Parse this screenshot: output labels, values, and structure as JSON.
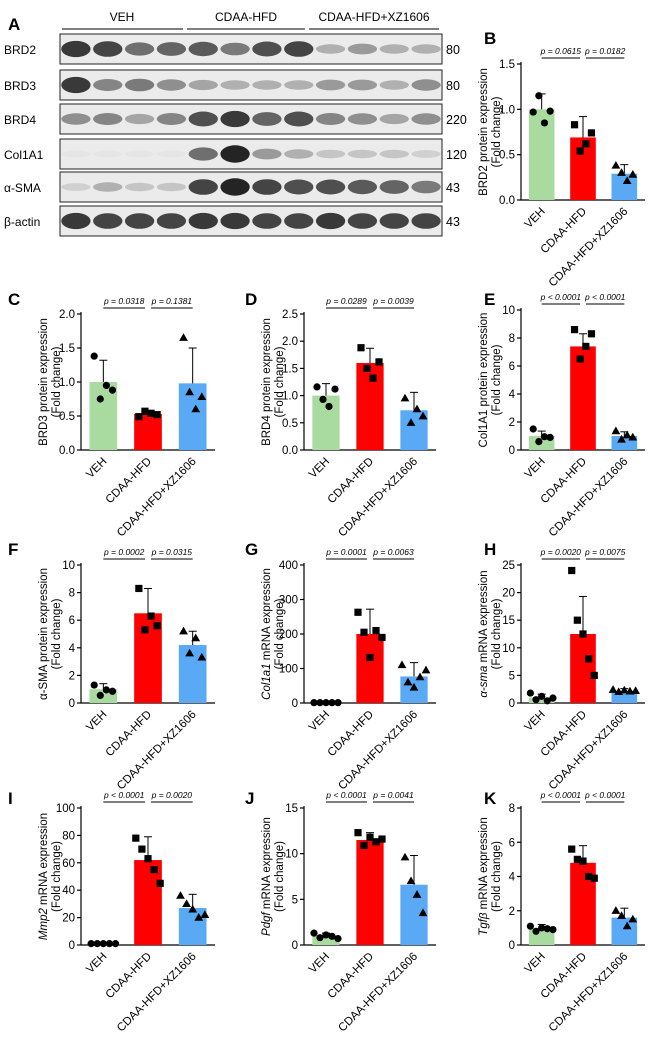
{
  "figure": {
    "western_blot": {
      "panel_label": "A",
      "groups": [
        "VEH",
        "CDAA-HFD",
        "CDAA-HFD+XZ1606"
      ],
      "lanes_per_group": [
        4,
        4,
        4
      ],
      "rows": [
        {
          "protein": "BRD2",
          "kda": "80",
          "intensity": [
            0.85,
            0.8,
            0.6,
            0.65,
            0.7,
            0.55,
            0.75,
            0.8,
            0.3,
            0.4,
            0.3,
            0.3
          ]
        },
        {
          "protein": "BRD3",
          "kda": "80",
          "intensity": [
            0.85,
            0.5,
            0.55,
            0.45,
            0.35,
            0.3,
            0.3,
            0.3,
            0.4,
            0.4,
            0.3,
            0.45
          ]
        },
        {
          "protein": "BRD4",
          "kda": "220",
          "intensity": [
            0.45,
            0.5,
            0.35,
            0.5,
            0.75,
            0.85,
            0.65,
            0.75,
            0.5,
            0.45,
            0.35,
            0.45
          ]
        },
        {
          "protein": "Col1A1",
          "kda": "120",
          "intensity": [
            0.05,
            0.05,
            0.05,
            0.05,
            0.6,
            0.95,
            0.4,
            0.3,
            0.2,
            0.2,
            0.2,
            0.15
          ]
        },
        {
          "protein": "α-SMA",
          "kda": "43",
          "intensity": [
            0.15,
            0.3,
            0.2,
            0.2,
            0.8,
            0.95,
            0.8,
            0.75,
            0.75,
            0.7,
            0.65,
            0.55
          ]
        },
        {
          "protein": "β-actin",
          "kda": "43",
          "intensity": [
            0.85,
            0.8,
            0.8,
            0.8,
            0.85,
            0.85,
            0.8,
            0.8,
            0.85,
            0.8,
            0.8,
            0.8
          ]
        }
      ]
    }
  },
  "chart_data": [
    {
      "panel": "B",
      "type": "bar",
      "categories": [
        "VEH",
        "CDAA-HFD",
        "CDAA-HFD+XZ1606"
      ],
      "values": [
        1.0,
        0.69,
        0.29
      ],
      "errors": [
        0.17,
        0.23,
        0.1
      ],
      "points": [
        [
          0.97,
          1.15,
          0.85,
          0.98
        ],
        [
          0.83,
          0.54,
          0.62,
          0.74
        ],
        [
          0.38,
          0.3,
          0.21,
          0.28
        ]
      ],
      "markers": [
        "circle",
        "square",
        "triangle"
      ],
      "ylabel": "BRD2 protein expression",
      "ylabel2": "(Fold change)",
      "ylim": [
        0,
        1.5
      ],
      "yticks": [
        0.0,
        0.5,
        1.0,
        1.5
      ],
      "yticklabels": [
        "0.0",
        "0.5",
        "1.0",
        "1.5"
      ],
      "pvalues": [
        "p = 0.0615",
        "p = 0.0182"
      ]
    },
    {
      "panel": "C",
      "type": "bar",
      "categories": [
        "VEH",
        "CDAA-HFD",
        "CDAA-HFD+XZ1606"
      ],
      "values": [
        1.0,
        0.53,
        0.98
      ],
      "errors": [
        0.32,
        0.05,
        0.52
      ],
      "points": [
        [
          1.38,
          0.75,
          0.95,
          0.88
        ],
        [
          0.49,
          0.57,
          0.54,
          0.52
        ],
        [
          1.65,
          0.85,
          0.6,
          0.78
        ]
      ],
      "markers": [
        "circle",
        "square",
        "triangle"
      ],
      "ylabel": "BRD3 protein expression",
      "ylabel2": "(Fold change)",
      "ylim": [
        0,
        2.0
      ],
      "yticks": [
        0.0,
        0.5,
        1.0,
        1.5,
        2.0
      ],
      "yticklabels": [
        "0.0",
        "0.5",
        "1.0",
        "1.5",
        "2.0"
      ],
      "pvalues": [
        "p = 0.0318",
        "p = 0.1381"
      ]
    },
    {
      "panel": "D",
      "type": "bar",
      "categories": [
        "VEH",
        "CDAA-HFD",
        "CDAA-HFD+XZ1606"
      ],
      "values": [
        1.0,
        1.6,
        0.73
      ],
      "errors": [
        0.22,
        0.27,
        0.33
      ],
      "points": [
        [
          1.16,
          0.93,
          0.8,
          1.12
        ],
        [
          1.88,
          1.5,
          1.32,
          1.62
        ],
        [
          0.95,
          0.5,
          0.75,
          0.62
        ]
      ],
      "markers": [
        "circle",
        "square",
        "triangle"
      ],
      "ylabel": "BRD4 protein expression",
      "ylabel2": "(Fold change)",
      "ylim": [
        0,
        2.5
      ],
      "yticks": [
        0.0,
        0.5,
        1.0,
        1.5,
        2.0,
        2.5
      ],
      "yticklabels": [
        "0.0",
        "0.5",
        "1.0",
        "1.5",
        "2.0",
        "2.5"
      ],
      "pvalues": [
        "p = 0.0289",
        "p = 0.0039"
      ]
    },
    {
      "panel": "E",
      "type": "bar",
      "categories": [
        "VEH",
        "CDAA-HFD",
        "CDAA-HFD+XZ1606"
      ],
      "values": [
        1.0,
        7.4,
        1.0
      ],
      "errors": [
        0.35,
        0.9,
        0.3
      ],
      "points": [
        [
          1.5,
          0.6,
          0.95,
          0.9
        ],
        [
          8.6,
          6.5,
          7.4,
          8.3
        ],
        [
          1.35,
          0.75,
          1.05,
          0.9
        ]
      ],
      "markers": [
        "circle",
        "square",
        "triangle"
      ],
      "ylabel": "Col1A1 protein expression",
      "ylabel2": "(Fold change)",
      "ylim": [
        0,
        10
      ],
      "yticks": [
        0,
        2,
        4,
        6,
        8,
        10
      ],
      "yticklabels": [
        "0",
        "2",
        "4",
        "6",
        "8",
        "10"
      ],
      "pvalues": [
        "p < 0.0001",
        "p < 0.0001"
      ]
    },
    {
      "panel": "F",
      "type": "bar",
      "categories": [
        "VEH",
        "CDAA-HFD",
        "CDAA-HFD+XZ1606"
      ],
      "values": [
        1.0,
        6.5,
        4.2
      ],
      "errors": [
        0.4,
        1.8,
        1.0
      ],
      "points": [
        [
          1.3,
          0.55,
          0.95,
          0.85
        ],
        [
          8.3,
          5.3,
          6.3,
          5.6
        ],
        [
          5.2,
          3.6,
          4.7,
          3.3
        ]
      ],
      "markers": [
        "circle",
        "square",
        "triangle"
      ],
      "ylabel": "α-SMA protein expression",
      "ylabel2": "(Fold change)",
      "ylim": [
        0,
        10
      ],
      "yticks": [
        0,
        2,
        4,
        6,
        8,
        10
      ],
      "yticklabels": [
        "0",
        "2",
        "4",
        "6",
        "8",
        "10"
      ],
      "pvalues": [
        "p = 0.0002",
        "p = 0.0315"
      ]
    },
    {
      "panel": "G",
      "type": "bar",
      "categories": [
        "VEH",
        "CDAA-HFD",
        "CDAA-HFD+XZ1606"
      ],
      "values": [
        1.0,
        200,
        77
      ],
      "errors": [
        0.3,
        72,
        40
      ],
      "points": [
        [
          1,
          1,
          1,
          1,
          1
        ],
        [
          263,
          205,
          132,
          210,
          190
        ],
        [
          110,
          60,
          45,
          75,
          95
        ]
      ],
      "markers": [
        "circle",
        "square",
        "triangle"
      ],
      "ylabel": "Col1a1 mRNA expression",
      "ylabel_italic": "Col1a1",
      "ylabel_rest": " mRNA expression",
      "ylabel2": "(Fold change)",
      "ylim": [
        0,
        400
      ],
      "yticks": [
        0,
        100,
        200,
        300,
        400
      ],
      "yticklabels": [
        "0",
        "100",
        "200",
        "300",
        "400"
      ],
      "pvalues": [
        "p = 0.0001",
        "p = 0.0063"
      ]
    },
    {
      "panel": "H",
      "type": "bar",
      "categories": [
        "VEH",
        "CDAA-HFD",
        "CDAA-HFD+XZ1606"
      ],
      "values": [
        1.0,
        12.5,
        2.2
      ],
      "errors": [
        0.6,
        6.8,
        0.4
      ],
      "points": [
        [
          1.8,
          0.6,
          1.2,
          0.4,
          0.9
        ],
        [
          24,
          15,
          12.5,
          8,
          5
        ],
        [
          2.4,
          2.0,
          2.3,
          2.1,
          2.2
        ]
      ],
      "markers": [
        "circle",
        "square",
        "triangle"
      ],
      "ylabel": "α-sma mRNA expression",
      "ylabel_italic": "α-sma",
      "ylabel_rest": " mRNA expression",
      "ylabel2": "(Fold change)",
      "ylim": [
        0,
        25
      ],
      "yticks": [
        0,
        5,
        10,
        15,
        20,
        25
      ],
      "yticklabels": [
        "0",
        "5",
        "10",
        "15",
        "20",
        "25"
      ],
      "pvalues": [
        "p = 0.0020",
        "p = 0.0075"
      ]
    },
    {
      "panel": "I",
      "type": "bar",
      "categories": [
        "VEH",
        "CDAA-HFD",
        "CDAA-HFD+XZ1606"
      ],
      "values": [
        1.0,
        62,
        27
      ],
      "errors": [
        0.2,
        17,
        10
      ],
      "points": [
        [
          1,
          1,
          1,
          1,
          1
        ],
        [
          78,
          70,
          63,
          55,
          45
        ],
        [
          36,
          30,
          26,
          20,
          22
        ]
      ],
      "markers": [
        "circle",
        "square",
        "triangle"
      ],
      "ylabel": "Mmp2 mRNA expression",
      "ylabel_italic": "Mmp2",
      "ylabel_rest": " mRNA expression",
      "ylabel2": "(Fold change)",
      "ylim": [
        0,
        100
      ],
      "yticks": [
        0,
        20,
        40,
        60,
        80,
        100
      ],
      "yticklabels": [
        "0",
        "20",
        "40",
        "60",
        "80",
        "100"
      ],
      "pvalues": [
        "p < 0.0001",
        "p = 0.0020"
      ]
    },
    {
      "panel": "J",
      "type": "bar",
      "categories": [
        "VEH",
        "CDAA-HFD",
        "CDAA-HFD+XZ1606"
      ],
      "values": [
        1.0,
        11.5,
        6.6
      ],
      "errors": [
        0.3,
        0.8,
        3.2
      ],
      "points": [
        [
          1.3,
          0.8,
          1.1,
          0.95,
          0.7
        ],
        [
          12.3,
          10.9,
          11.8,
          11.3,
          11.6
        ],
        [
          9.6,
          7.0,
          5.5,
          3.5
        ]
      ],
      "markers": [
        "circle",
        "square",
        "triangle"
      ],
      "ylabel": "Pdgf mRNA expression",
      "ylabel_italic": "Pdgf",
      "ylabel_rest": " mRNA expression",
      "ylabel2": "(Fold change)",
      "ylim": [
        0,
        15
      ],
      "yticks": [
        0,
        5,
        10,
        15
      ],
      "yticklabels": [
        "0",
        "5",
        "10",
        "15"
      ],
      "pvalues": [
        "p < 0.0001",
        "p = 0.0041"
      ]
    },
    {
      "panel": "K",
      "type": "bar",
      "categories": [
        "VEH",
        "CDAA-HFD",
        "CDAA-HFD+XZ1606"
      ],
      "values": [
        1.0,
        4.8,
        1.6
      ],
      "errors": [
        0.2,
        1.0,
        0.55
      ],
      "points": [
        [
          1.1,
          0.8,
          1.0,
          0.95,
          0.9
        ],
        [
          5.6,
          5.0,
          4.9,
          4.0,
          3.9
        ],
        [
          2.0,
          1.7,
          1.1,
          1.5
        ]
      ],
      "markers": [
        "circle",
        "square",
        "triangle"
      ],
      "ylabel": "Tgfβ mRNA expression",
      "ylabel_italic": "Tgfβ",
      "ylabel_rest": " mRNA expression",
      "ylabel2": "(Fold change)",
      "ylim": [
        0,
        8
      ],
      "yticks": [
        0,
        2,
        4,
        6,
        8
      ],
      "yticklabels": [
        "0",
        "2",
        "4",
        "6",
        "8"
      ],
      "pvalues": [
        "p < 0.0001",
        "p < 0.0001"
      ]
    }
  ],
  "colors": {
    "group_fills": [
      "#a9dba1",
      "#ff0000",
      "#5aa9f5"
    ],
    "points": "#000000"
  }
}
